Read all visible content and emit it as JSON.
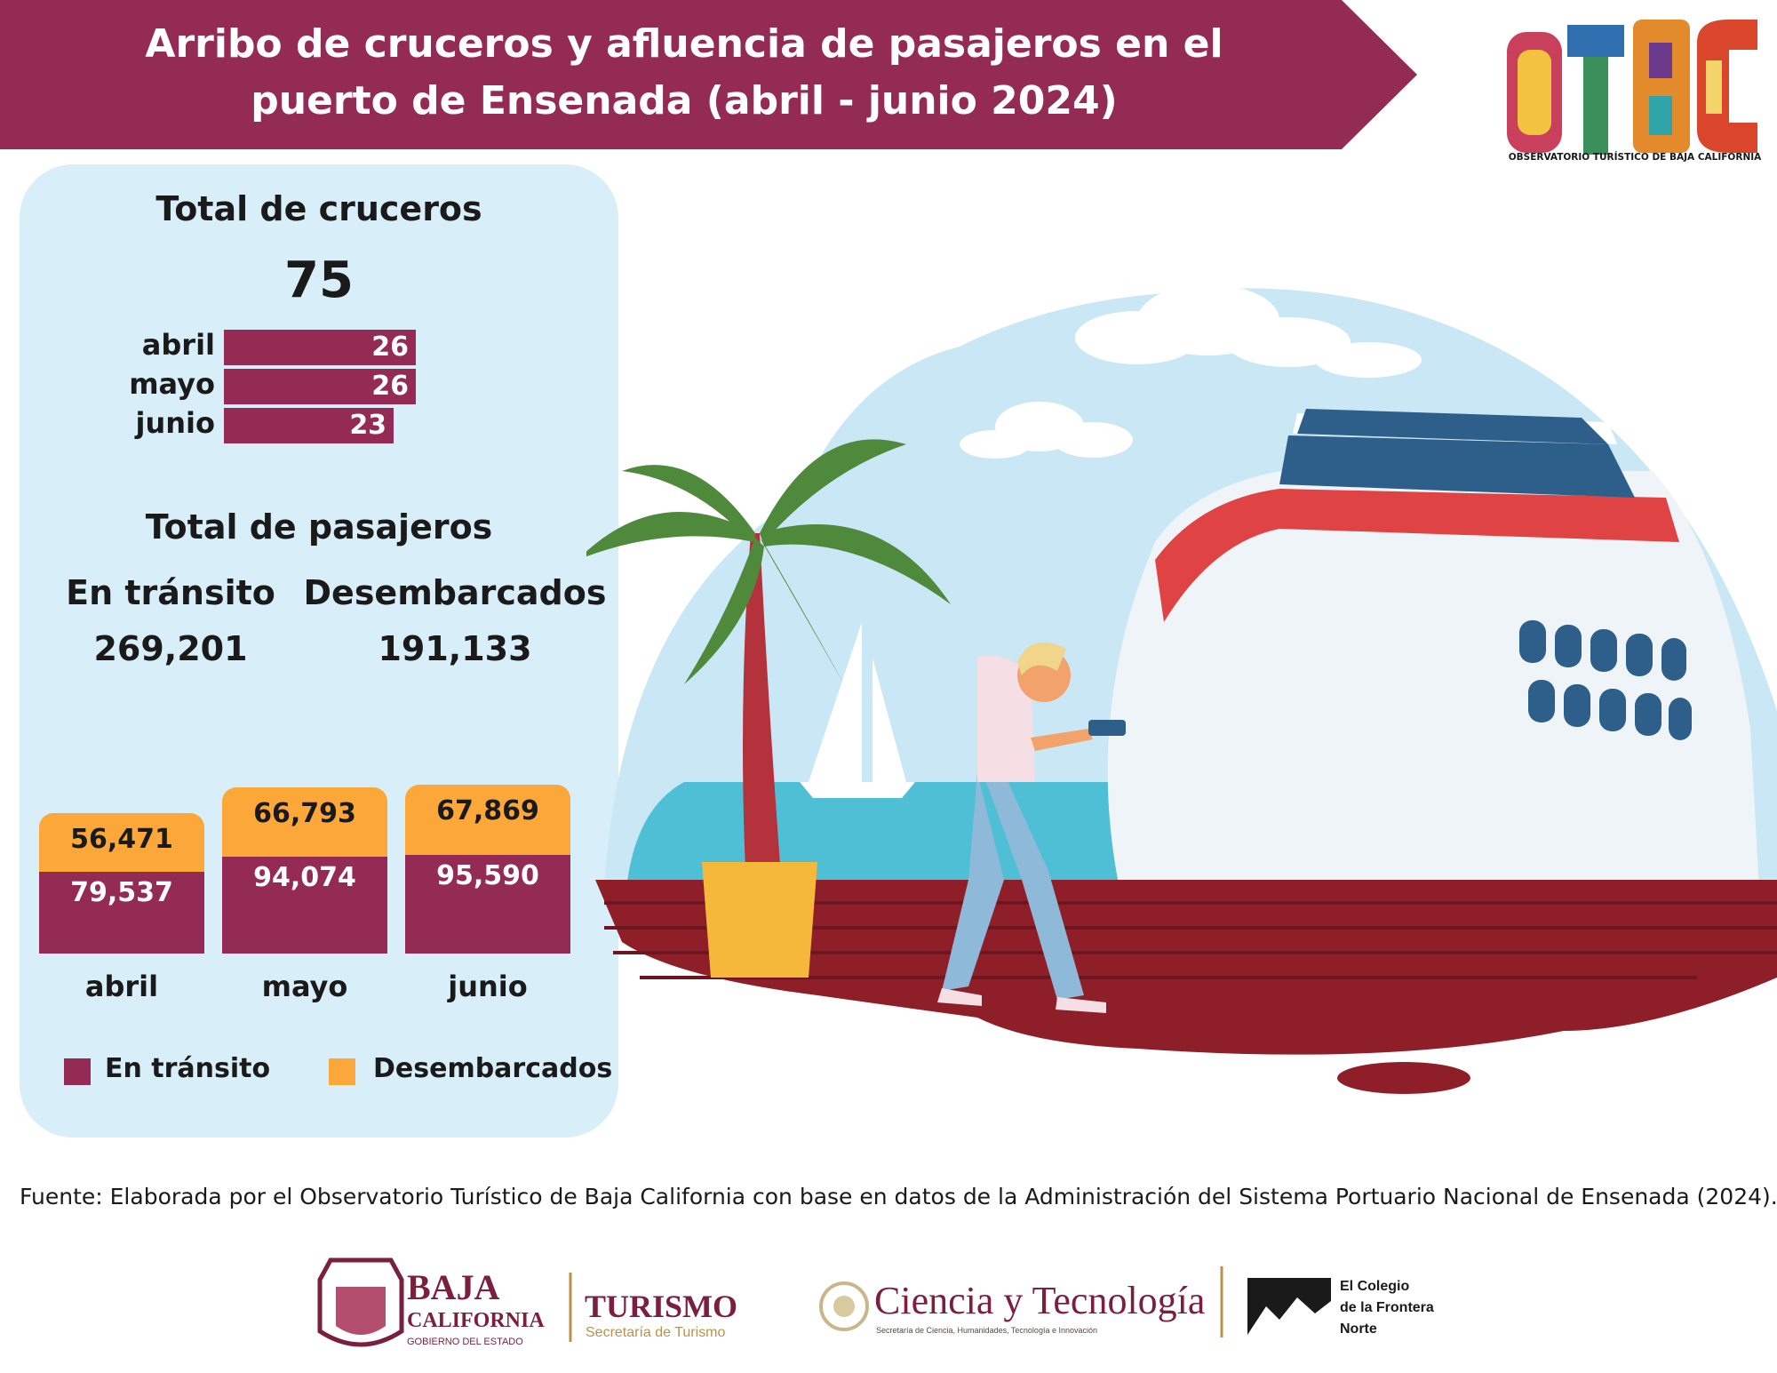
{
  "title": "Arribo de cruceros y afluencia de pasajeros en el puerto de Ensenada (abril - junio 2024)",
  "title_line1": "Arribo de cruceros y afluencia de pasajeros en el",
  "title_line2": "puerto de Ensenada (abril - junio 2024)",
  "colors": {
    "banner": "#932b55",
    "transit": "#932b55",
    "disembarked": "#fba73a",
    "panel": "#d8eef8"
  },
  "cruises": {
    "heading": "Total de cruceros",
    "total": "75"
  },
  "passengers": {
    "heading": "Total de pasajeros",
    "transit_label": "En tránsito",
    "transit_total": "269,201",
    "disembarked_label": "Desembarcados",
    "disembarked_total": "191,133"
  },
  "chart_data": [
    {
      "type": "bar",
      "orientation": "horizontal",
      "categories": [
        "abril",
        "mayo",
        "junio"
      ],
      "values": [
        26,
        26,
        23
      ],
      "value_labels": [
        "26",
        "26",
        "23"
      ]
    },
    {
      "type": "bar",
      "stacked": true,
      "categories": [
        "abril",
        "mayo",
        "junio"
      ],
      "series": [
        {
          "name": "En tránsito",
          "values": [
            79537,
            94074,
            95590
          ],
          "labels": [
            "79,537",
            "94,074",
            "95,590"
          ],
          "color": "#932b55"
        },
        {
          "name": "Desembarcados",
          "values": [
            56471,
            66793,
            67869
          ],
          "labels": [
            "56,471",
            "66,793",
            "67,869"
          ],
          "color": "#fba73a"
        }
      ],
      "legend_position": "bottom"
    }
  ],
  "legend": {
    "transit": "En tránsito",
    "disembarked": "Desembarcados"
  },
  "logo_caption": "OBSERVATORIO TURÍSTICO DE BAJA CALIFORNIA",
  "logo_letters": "OTBC",
  "source": "Fuente: Elaborada por el Observatorio Turístico de Baja California con base en datos de la Administración del Sistema Portuario Nacional de Ensenada (2024).",
  "footer": {
    "bc_line1": "BAJA",
    "bc_line2": "CALIFORNIA",
    "bc_line3": "GOBIERNO DEL ESTADO",
    "turismo": "TURISMO",
    "turismo_sub": "Secretaría de Turismo",
    "ciencia": "Ciencia y Tecnología",
    "ciencia_sub": "Secretaría de Ciencia, Humanidades, Tecnología e Innovación",
    "colef_1": "El Colegio",
    "colef_2": "de la Frontera",
    "colef_3": "Norte"
  }
}
